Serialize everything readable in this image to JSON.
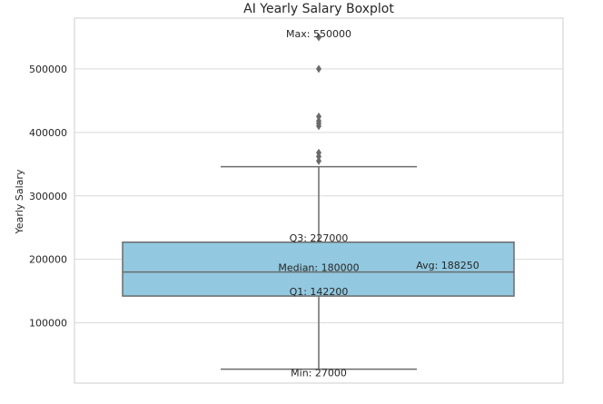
{
  "chart_data": {
    "type": "box",
    "title": "AI Yearly Salary Boxplot",
    "ylabel": "Yearly Salary",
    "xlabel": "",
    "ylim": [
      5000,
      580000
    ],
    "yticks": [
      100000,
      200000,
      300000,
      400000,
      500000
    ],
    "ytick_labels": [
      "100000",
      "200000",
      "300000",
      "400000",
      "500000"
    ],
    "grid": true,
    "box": {
      "q1": 142200,
      "median": 180000,
      "q3": 227000,
      "whisker_low": 27000,
      "whisker_high": 346000,
      "mean": 188250,
      "fill": "#92c9e0",
      "edge": "#6b6b6b"
    },
    "outliers": [
      355000,
      362000,
      368000,
      410000,
      414000,
      418000,
      425000,
      500000,
      550000
    ],
    "outlier_color": "#6b6b6b",
    "annotations": {
      "max": "Max: 550000",
      "q3": "Q3: 227000",
      "avg": "Avg: 188250",
      "median": "Median: 180000",
      "q1": "Q1: 142200",
      "min": "Min: 27000"
    }
  }
}
